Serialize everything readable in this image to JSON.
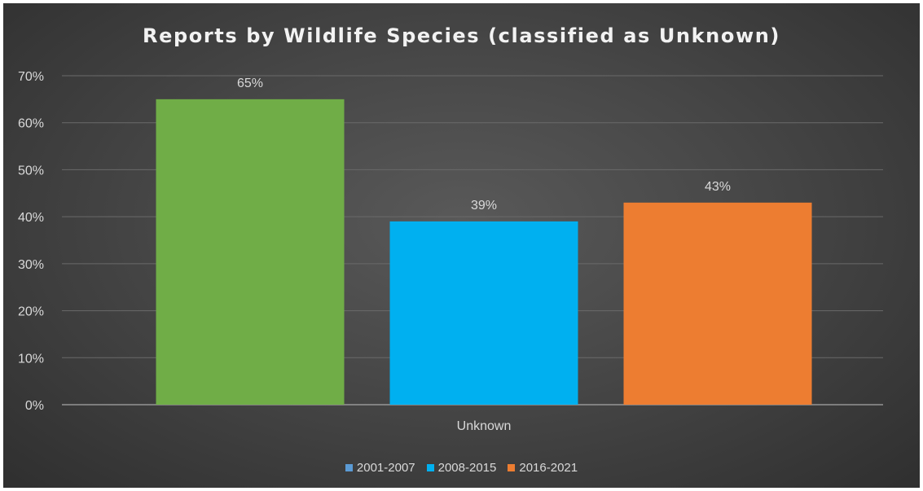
{
  "chart_data": {
    "type": "bar",
    "title": "Reports by Wildlife Species (classified as Unknown)",
    "categories": [
      "Unknown"
    ],
    "series": [
      {
        "name": "2001-2007",
        "values": [
          65
        ],
        "color": "#70ad47",
        "label": "65%"
      },
      {
        "name": "2008-2015",
        "values": [
          39
        ],
        "color": "#00b0f0",
        "label": "39%"
      },
      {
        "name": "2016-2021",
        "values": [
          43
        ],
        "color": "#ed7d31",
        "label": "43%"
      }
    ],
    "legend_colors": [
      "#5b9bd5",
      "#00b0f0",
      "#ed7d31"
    ],
    "ylim": [
      0,
      70
    ],
    "yticks": [
      "0%",
      "10%",
      "20%",
      "30%",
      "40%",
      "50%",
      "60%",
      "70%"
    ],
    "grid": true,
    "legend_position": "bottom",
    "background": "#474747"
  }
}
